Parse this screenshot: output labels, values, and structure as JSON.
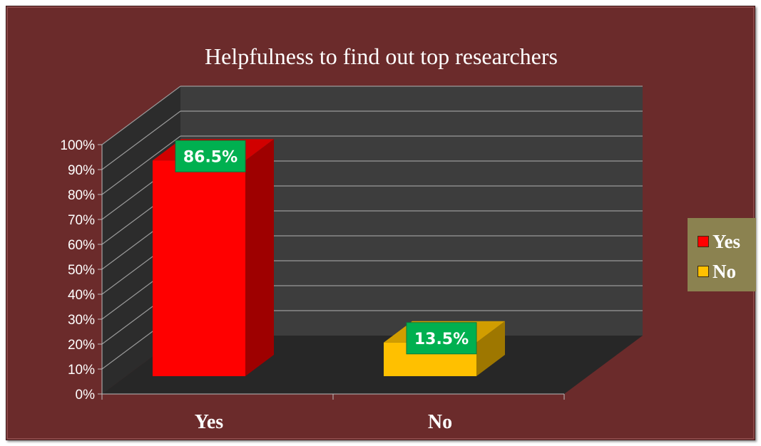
{
  "chart_data": {
    "type": "bar",
    "title": "Helpfulness to find out top researchers",
    "categories": [
      "Yes",
      "No"
    ],
    "values": [
      86.5,
      13.5
    ],
    "data_labels": [
      "86.5%",
      "13.5%"
    ],
    "colors": [
      "#ff0000",
      "#ffc000"
    ],
    "ylim": [
      0,
      100
    ],
    "yticks": [
      "0%",
      "10%",
      "20%",
      "30%",
      "40%",
      "50%",
      "60%",
      "70%",
      "80%",
      "90%",
      "100%"
    ],
    "legend": {
      "position": "right",
      "entries": [
        {
          "label": "Yes",
          "color": "#ff0000"
        },
        {
          "label": "No",
          "color": "#ffc000"
        }
      ]
    },
    "data_label_color": "#00b050",
    "grid": true,
    "style": "3d"
  }
}
